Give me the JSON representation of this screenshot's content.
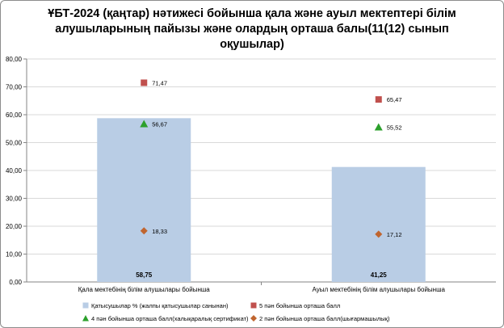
{
  "chart_data": {
    "type": "bar",
    "title": "ҰБТ-2024  (қаңтар) нәтижесі бойынша қала және ауыл мектептері білім алушыларының пайызы және олардың орташа балы(11(12) сынып оқушылар)",
    "categories": [
      "Қала мектебінің білім алушылары бойынша",
      "Ауыл мектебінің білім алушылары бойынша"
    ],
    "ylim": [
      0,
      80
    ],
    "yticks": [
      "0,00",
      "10,00",
      "20,00",
      "30,00",
      "40,00",
      "50,00",
      "60,00",
      "70,00",
      "80,00"
    ],
    "grid": true,
    "legend_position": "bottom",
    "series": [
      {
        "name": "Қатысушылар % (жалпы қатысушылар санынан)",
        "kind": "bar",
        "color": "#b9cde5",
        "values": [
          58.75,
          41.25
        ],
        "labels": [
          "58,75",
          "41,25"
        ]
      },
      {
        "name": "5 пән бойынша  орташа  балл",
        "kind": "marker",
        "marker": "square",
        "color": "#c0504d",
        "values": [
          71.47,
          65.47
        ],
        "labels": [
          "71,47",
          "65,47"
        ]
      },
      {
        "name": "4 пән бойынша  орташа балл(халықаралық сертификат)",
        "kind": "marker",
        "marker": "triangle",
        "color": "#2ca02c",
        "values": [
          56.67,
          55.52
        ],
        "labels": [
          "56,67",
          "55,52"
        ]
      },
      {
        "name": "2 пән бойынша орташа балл(шығармашылық)",
        "kind": "marker",
        "marker": "diamond",
        "color": "#c0652f",
        "values": [
          18.33,
          17.12
        ],
        "labels": [
          "18,33",
          "17,12"
        ]
      }
    ]
  }
}
